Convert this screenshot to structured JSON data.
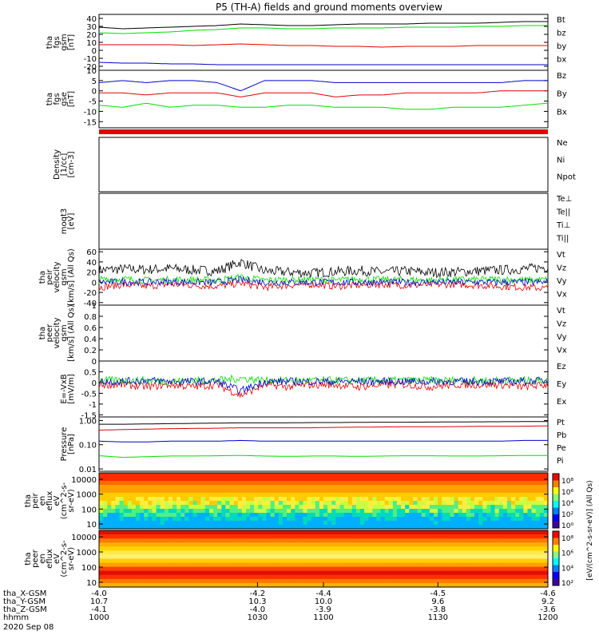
{
  "title": "P5 (TH-A) fields and ground moments overview",
  "colors": {
    "black": "#000000",
    "red": "#e00000",
    "green": "#00dd00",
    "blue": "#0000cc"
  },
  "chart_data": [
    {
      "type": "line",
      "ylabel": [
        "tha",
        "fgs",
        "gsm",
        "[nT]"
      ],
      "ylim": [
        -25,
        45
      ],
      "yticks": [
        -20,
        -10,
        0,
        10,
        20,
        30,
        40
      ],
      "series": [
        {
          "name": "Bt",
          "color": "black",
          "values": [
            29,
            27,
            28,
            29,
            30,
            31,
            33,
            32,
            31,
            31,
            32,
            33,
            33,
            33,
            34,
            34,
            34,
            35,
            36,
            36
          ]
        },
        {
          "name": "bz",
          "color": "red",
          "values": [
            7,
            7,
            7,
            7,
            6,
            7,
            8,
            7,
            6,
            6,
            5,
            5,
            4,
            5,
            5,
            5,
            6,
            6,
            6,
            6
          ]
        },
        {
          "name": "by",
          "color": "green",
          "values": [
            22,
            21,
            22,
            23,
            25,
            26,
            28,
            28,
            27,
            27,
            28,
            28,
            28,
            29,
            29,
            29,
            30,
            30,
            31,
            31
          ]
        },
        {
          "name": "bx",
          "color": "blue",
          "values": [
            -15,
            -16,
            -16,
            -17,
            -17,
            -18,
            -18,
            -18,
            -18,
            -18,
            -18,
            -18,
            -18,
            -18,
            -18,
            -18,
            -18,
            -18,
            -18,
            -18
          ]
        }
      ]
    },
    {
      "type": "line",
      "ylabel": [
        "tha",
        "fgs",
        "gse",
        "[nT]"
      ],
      "ylim": [
        -18,
        10
      ],
      "yticks": [
        -15,
        -10,
        -5,
        0,
        5,
        10
      ],
      "series": [
        {
          "name": "Bz",
          "color": "red",
          "values": [
            -1,
            -1,
            -2,
            -1,
            -1,
            -1,
            -3,
            -1,
            -1,
            -1,
            -3,
            -2,
            -2,
            -1,
            -1,
            -1,
            -1,
            0,
            0,
            0
          ]
        },
        {
          "name": "By",
          "color": "green",
          "values": [
            -7,
            -8,
            -6,
            -8,
            -7,
            -7,
            -8,
            -8,
            -7,
            -7,
            -8,
            -8,
            -8,
            -9,
            -9,
            -8,
            -8,
            -8,
            -7,
            -6
          ]
        },
        {
          "name": "Bx",
          "color": "blue",
          "values": [
            4,
            5,
            4,
            5,
            5,
            4,
            0,
            5,
            5,
            5,
            4,
            4,
            4,
            4,
            4,
            4,
            4,
            4,
            5,
            5
          ]
        }
      ]
    },
    {
      "type": "line",
      "ylabel": [
        "Density",
        "[1/cc]",
        "[cm-3]"
      ],
      "yscale": "log",
      "series": [
        {
          "name": "Ne",
          "color": "red"
        },
        {
          "name": "Ni",
          "color": "black"
        },
        {
          "name": "Npot",
          "color": "blue"
        }
      ]
    },
    {
      "type": "line",
      "ylabel": [
        "moqt3",
        "[eV]"
      ],
      "yscale": "log",
      "series": [
        {
          "name": "Te⊥",
          "color": "red"
        },
        {
          "name": "Te||",
          "color": "black"
        },
        {
          "name": "Ti⊥",
          "color": "blue"
        },
        {
          "name": "Ti||",
          "color": "green"
        }
      ]
    },
    {
      "type": "line",
      "ylabel": [
        "tha",
        "peir",
        "velocity",
        "gsm",
        "[km/s] (All Qs)"
      ],
      "ylim": [
        -45,
        65
      ],
      "yticks": [
        -40,
        -20,
        0,
        20,
        40,
        60
      ],
      "series": [
        {
          "name": "Vt",
          "color": "black",
          "values": [
            24,
            26,
            25,
            27,
            24,
            22,
            40,
            22,
            20,
            18,
            21,
            23,
            20,
            22,
            19,
            20,
            22,
            24,
            26,
            30
          ]
        },
        {
          "name": "Vz",
          "color": "red",
          "values": [
            -10,
            -5,
            -8,
            -4,
            -6,
            -8,
            -2,
            -10,
            -6,
            -4,
            -8,
            -6,
            -4,
            -6,
            -5,
            -4,
            -6,
            -8,
            -10,
            -12
          ]
        },
        {
          "name": "Vy",
          "color": "green",
          "values": [
            5,
            6,
            4,
            5,
            5,
            4,
            10,
            4,
            5,
            5,
            4,
            6,
            5,
            5,
            4,
            5,
            5,
            6,
            4,
            5
          ]
        },
        {
          "name": "Vx",
          "color": "blue",
          "values": [
            0,
            1,
            0,
            1,
            0,
            0,
            5,
            0,
            0,
            0,
            0,
            0,
            0,
            0,
            0,
            0,
            0,
            0,
            0,
            0
          ]
        }
      ]
    },
    {
      "type": "line",
      "ylabel": [
        "tha",
        "peer",
        "velocity",
        "gsm",
        "[km/s] (All Qs)"
      ],
      "ylim": [
        0,
        1
      ],
      "yticks": [
        0,
        0.2,
        0.4,
        0.6,
        0.8,
        1.0
      ],
      "series": [
        {
          "name": "Vt",
          "color": "black"
        },
        {
          "name": "Vz",
          "color": "red"
        },
        {
          "name": "Vy",
          "color": "green"
        },
        {
          "name": "Vx",
          "color": "blue"
        }
      ]
    },
    {
      "type": "line",
      "ylabel": [
        "E=-VxB",
        "[mV/m]"
      ],
      "ylim": [
        -1.6,
        1.0
      ],
      "yticks": [
        -1.5,
        -1.0,
        -0.5,
        0.0,
        0.5
      ],
      "series": [
        {
          "name": "Ez",
          "color": "red",
          "values": [
            -0.1,
            -0.1,
            -0.2,
            -0.1,
            -0.2,
            -0.1,
            -0.6,
            -0.1,
            -0.2,
            -0.1,
            -0.1,
            -0.2,
            -0.1,
            -0.1,
            -0.2,
            -0.1,
            -0.1,
            -0.1,
            -0.2,
            -0.1
          ]
        },
        {
          "name": "Ey",
          "color": "green",
          "values": [
            0.1,
            0.1,
            0.1,
            0.05,
            0.1,
            0.1,
            0.2,
            0.1,
            0.1,
            0.1,
            0.1,
            0.1,
            0.1,
            0.1,
            0.1,
            0.1,
            0.1,
            0.1,
            0.1,
            0.1
          ]
        },
        {
          "name": "Ex",
          "color": "blue",
          "values": [
            0.05,
            0.05,
            0.1,
            0.05,
            0.05,
            0.05,
            -0.4,
            0.05,
            0.05,
            0.05,
            0.05,
            0.05,
            0.05,
            0.05,
            0.05,
            0.05,
            0.05,
            0.05,
            0.05,
            0.1
          ]
        }
      ]
    },
    {
      "type": "line",
      "ylabel": [
        "Pressure",
        "[nPa]"
      ],
      "yscale": "log",
      "ylim": [
        0.008,
        1.4
      ],
      "yticks": [
        0.01,
        0.1,
        1.0
      ],
      "ytick_labels": [
        "0.01",
        "0.10",
        "1.00"
      ],
      "series": [
        {
          "name": "Pt",
          "color": "black",
          "values": [
            0.7,
            0.7,
            0.72,
            0.74,
            0.76,
            0.78,
            0.8,
            0.8,
            0.8,
            0.82,
            0.82,
            0.84,
            0.85,
            0.85,
            0.86,
            0.87,
            0.88,
            0.89,
            0.9,
            0.9
          ]
        },
        {
          "name": "Pb",
          "color": "red",
          "values": [
            0.4,
            0.42,
            0.44,
            0.46,
            0.47,
            0.48,
            0.5,
            0.5,
            0.5,
            0.5,
            0.52,
            0.53,
            0.54,
            0.55,
            0.55,
            0.56,
            0.57,
            0.57,
            0.58,
            0.6
          ]
        },
        {
          "name": "Pe",
          "color": "green",
          "values": [
            0.035,
            0.03,
            0.032,
            0.034,
            0.034,
            0.035,
            0.036,
            0.034,
            0.033,
            0.034,
            0.034,
            0.033,
            0.034,
            0.035,
            0.035,
            0.034,
            0.034,
            0.035,
            0.036,
            0.036
          ]
        },
        {
          "name": "Pi",
          "color": "blue",
          "values": [
            0.14,
            0.13,
            0.13,
            0.14,
            0.14,
            0.14,
            0.15,
            0.14,
            0.14,
            0.14,
            0.14,
            0.14,
            0.14,
            0.14,
            0.14,
            0.14,
            0.14,
            0.14,
            0.15,
            0.15
          ]
        }
      ]
    },
    {
      "type": "heatmap",
      "ylabel": [
        "tha",
        "peir",
        "en",
        "eflux",
        "eV",
        "(cm^2-s-",
        "sr-eV)"
      ],
      "yscale": "log",
      "yticks": [
        10,
        100,
        1000,
        10000
      ],
      "ytick_labels": [
        "10",
        "100",
        "1000",
        "10000"
      ]
    },
    {
      "type": "heatmap",
      "ylabel": [
        "tha",
        "peer",
        "en",
        "eflux",
        "eV",
        "(cm^2-s-",
        "sr-eV)"
      ],
      "yscale": "log",
      "yticks": [
        10,
        100,
        1000,
        10000
      ],
      "ytick_labels": [
        "10",
        "100",
        "1000",
        "10000"
      ]
    }
  ],
  "colorbar1": {
    "ticks": [
      "10⁸",
      "10⁶",
      "10⁴",
      "10²",
      "10⁰"
    ]
  },
  "colorbar2": {
    "ticks": [
      "10⁸",
      "10⁶",
      "10⁴",
      "10²"
    ]
  },
  "colorbar_label": "[eV/(cm^2-s-sr-eV)] (All Qs)",
  "xaxis": {
    "rows": [
      {
        "label": "tha_X-GSM",
        "values": [
          "-4.0",
          "-4.2",
          "-4.4",
          "-4.5",
          "-4.6"
        ]
      },
      {
        "label": "tha_Y-GSM",
        "values": [
          "10.7",
          "10.3",
          "10.0",
          "9.6",
          "9.2"
        ]
      },
      {
        "label": "tha_Z-GSM",
        "values": [
          "-4.1",
          "-4.0",
          "-3.9",
          "-3.8",
          "-3.6"
        ]
      },
      {
        "label": "hhmm",
        "values": [
          "1000",
          "1030",
          "1100",
          "1130",
          "1200"
        ]
      }
    ],
    "date": "2020 Sep 08"
  }
}
